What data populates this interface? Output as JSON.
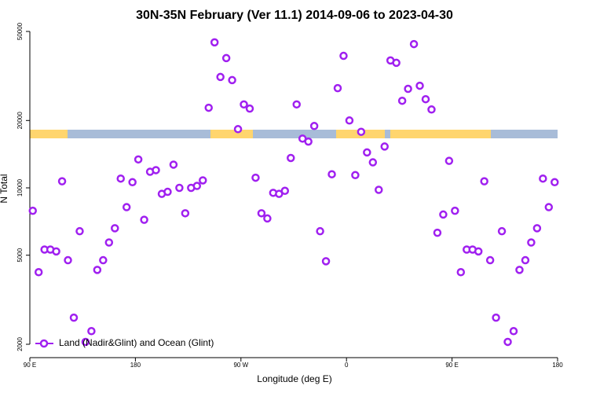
{
  "chart_data": {
    "type": "scatter",
    "title": "30N-35N February (Ver 11.1)   2014-09-06 to 2023-04-30",
    "x_label": "Longitude (deg E)",
    "y_label": "N Total",
    "log_y": true,
    "legend_position": "bottomleft",
    "xlim": [
      90,
      540
    ],
    "xticks": [
      {
        "value": 90,
        "label": "90 E"
      },
      180,
      {
        "value": 270,
        "label": "90 W"
      },
      {
        "value": 360,
        "label": "0"
      },
      {
        "value": 450,
        "label": "90 E"
      },
      {
        "value": 540,
        "label": "180"
      }
    ],
    "ylim": [
      2000,
      50000
    ],
    "yticks": [
      2000,
      5000,
      10000,
      20000,
      50000
    ],
    "series": [
      {
        "name": "Land (Nadir&Glint) and Ocean (Glint)",
        "color": "#a020f0",
        "x": [
          92.5,
          97.5,
          102.5,
          107.5,
          112.5,
          117.5,
          122.5,
          127.5,
          132.5,
          137.5,
          142.5,
          147.5,
          152.5,
          157.5,
          162.5,
          167.5,
          172.5,
          177.5,
          182.5,
          187.5,
          192.5,
          197.5,
          202.5,
          207.5,
          212.5,
          217.5,
          222.5,
          227.5,
          232.5,
          237.5,
          242.5,
          247.5,
          252.5,
          257.5,
          262.5,
          267.5,
          272.5,
          277.5,
          282.5,
          287.5,
          292.5,
          297.5,
          302.5,
          307.5,
          312.5,
          317.5,
          322.5,
          327.5,
          332.5,
          337.5,
          342.5,
          347.5,
          352.5,
          357.5,
          362.5,
          367.5,
          372.5,
          377.5,
          382.5,
          387.5,
          392.5,
          397.5,
          402.5,
          407.5,
          412.5,
          417.5,
          422.5,
          427.5,
          432.5,
          437.5,
          442.5,
          447.5,
          452.5,
          457.5,
          462.5,
          467.5,
          472.5,
          477.5,
          482.5,
          487.5,
          492.5,
          497.5,
          502.5,
          507.5,
          512.5,
          517.5,
          522.5,
          527.5,
          532.5,
          537.5
        ],
        "values": [
          7900,
          4200,
          5300,
          5300,
          5200,
          10700,
          4750,
          2630,
          6400,
          2050,
          2290,
          4300,
          4750,
          5700,
          6600,
          11000,
          8200,
          10600,
          13400,
          7200,
          11800,
          12000,
          9400,
          9600,
          12700,
          10000,
          7700,
          10000,
          10200,
          10800,
          22800,
          44700,
          31300,
          38000,
          30300,
          18300,
          23600,
          22600,
          11100,
          7700,
          7300,
          9500,
          9400,
          9700,
          13600,
          23600,
          16600,
          16100,
          18900,
          6400,
          4700,
          11500,
          27900,
          38900,
          20000,
          11400,
          17800,
          14400,
          13000,
          9800,
          15300,
          37100,
          36200,
          24500,
          27700,
          43900,
          28600,
          24900,
          22400,
          6300,
          7600,
          13200,
          7900,
          4200,
          5300,
          5300,
          5200,
          10700,
          4750,
          2630,
          6400,
          2050,
          2290,
          4300,
          4750,
          5700,
          6600,
          11000,
          8200,
          10600
        ]
      }
    ]
  }
}
